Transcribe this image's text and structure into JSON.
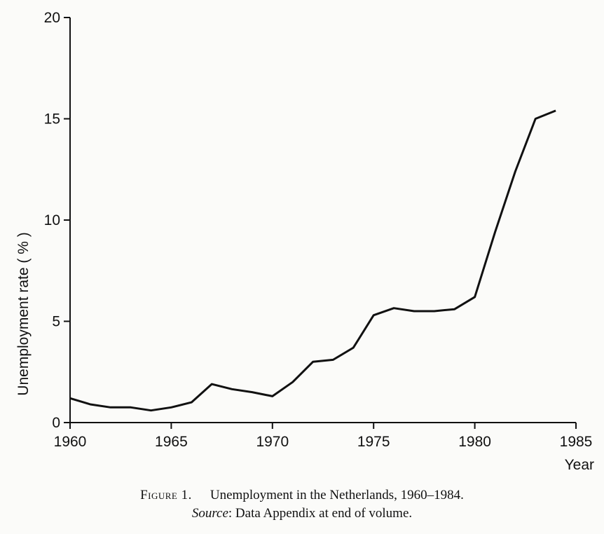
{
  "chart_data": {
    "type": "line",
    "title": "",
    "xlabel": "Year",
    "ylabel": "Unemployment rate ( % )",
    "xlim": [
      1960,
      1985
    ],
    "ylim": [
      0,
      20
    ],
    "x_ticks": [
      1960,
      1965,
      1970,
      1975,
      1980,
      1985
    ],
    "y_ticks": [
      0,
      5,
      10,
      15,
      20
    ],
    "grid": false,
    "legend": "none",
    "series": [
      {
        "x": [
          1960,
          1961,
          1962,
          1963,
          1964,
          1965,
          1966,
          1967,
          1968,
          1969,
          1970,
          1971,
          1972,
          1973,
          1974,
          1975,
          1976,
          1977,
          1978,
          1979,
          1980,
          1981,
          1982,
          1983,
          1984
        ],
        "y": [
          1.2,
          0.9,
          0.75,
          0.75,
          0.6,
          0.75,
          1.0,
          1.9,
          1.65,
          1.5,
          1.3,
          2.0,
          3.0,
          3.1,
          3.7,
          5.3,
          5.65,
          5.5,
          5.5,
          5.6,
          6.2,
          9.4,
          12.4,
          15.0,
          15.4
        ],
        "color": "#111111"
      }
    ]
  },
  "caption": {
    "figure_label": "Figure 1.",
    "figure_text": "Unemployment in the Netherlands, 1960–1984.",
    "source_label": "Source",
    "source_text": ": Data Appendix at end of volume."
  }
}
